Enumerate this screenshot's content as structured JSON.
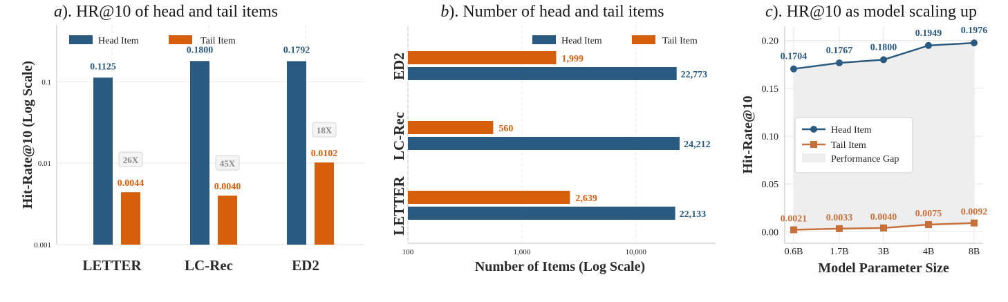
{
  "colors": {
    "head": "#2b5a80",
    "tail": "#d65f0e",
    "gap": "#eeeeee"
  },
  "chart_data": [
    {
      "type": "bar",
      "title": "a). HR@10 of head and tail items",
      "title_prefix": "a",
      "title_rest": "). HR@10 of head and tail items",
      "ylabel": "Hit-Rate@10 (Log Scale)",
      "xlabel": "",
      "yscale": "log",
      "ylim": [
        0.001,
        0.5
      ],
      "yticks": [
        "0.001",
        "0.01",
        "0.1"
      ],
      "categories": [
        "LETTER",
        "LC-Rec",
        "ED2"
      ],
      "series": [
        {
          "name": "Head Item",
          "values": [
            0.1125,
            0.18,
            0.1792
          ],
          "labels": [
            "0.1125",
            "0.1800",
            "0.1792"
          ]
        },
        {
          "name": "Tail Item",
          "values": [
            0.0044,
            0.004,
            0.0102
          ],
          "labels": [
            "0.0044",
            "0.0040",
            "0.0102"
          ]
        }
      ],
      "annotations": [
        "26X",
        "45X",
        "18X"
      ],
      "legend": "top",
      "grid": true
    },
    {
      "type": "bar",
      "orientation": "horizontal",
      "title": "b). Number of head and tail items",
      "title_prefix": "b",
      "title_rest": "). Number of head and tail items",
      "xlabel": "Number of Items (Log Scale)",
      "ylabel": "",
      "xscale": "log",
      "xlim": [
        100,
        50000
      ],
      "xticks": [
        "100",
        "1,000",
        "10,000"
      ],
      "categories": [
        "ED2",
        "LC-Rec",
        "LETTER"
      ],
      "series": [
        {
          "name": "Head Item",
          "values": [
            22773,
            24212,
            22133
          ],
          "labels": [
            "22,773",
            "24,212",
            "22,133"
          ]
        },
        {
          "name": "Tail Item",
          "values": [
            1999,
            560,
            2639
          ],
          "labels": [
            "1,999",
            "560",
            "2,639"
          ]
        }
      ],
      "legend": "top-right",
      "grid": true
    },
    {
      "type": "line",
      "title": "c). HR@10 as model scaling up",
      "title_prefix": "c",
      "title_rest": "). HR@10 as model scaling up",
      "xlabel": "Model Parameter Size",
      "ylabel": "Hit-Rate@10",
      "categories": [
        "0.6B",
        "1.7B",
        "3B",
        "4B",
        "8B"
      ],
      "ylim": [
        -0.012,
        0.215
      ],
      "yticks": [
        "0.00",
        "0.05",
        "0.10",
        "0.15",
        "0.20"
      ],
      "series": [
        {
          "name": "Head Item",
          "values": [
            0.1704,
            0.1767,
            0.18,
            0.1949,
            0.1976
          ],
          "labels": [
            "0.1704",
            "0.1767",
            "0.1800",
            "0.1949",
            "0.1976"
          ]
        },
        {
          "name": "Tail Item",
          "values": [
            0.0021,
            0.0033,
            0.004,
            0.0075,
            0.0092
          ],
          "labels": [
            "0.0021",
            "0.0033",
            "0.0040",
            "0.0075",
            "0.0092"
          ]
        }
      ],
      "gap_label": "Performance Gap",
      "legend": "center-left",
      "grid": true
    }
  ]
}
